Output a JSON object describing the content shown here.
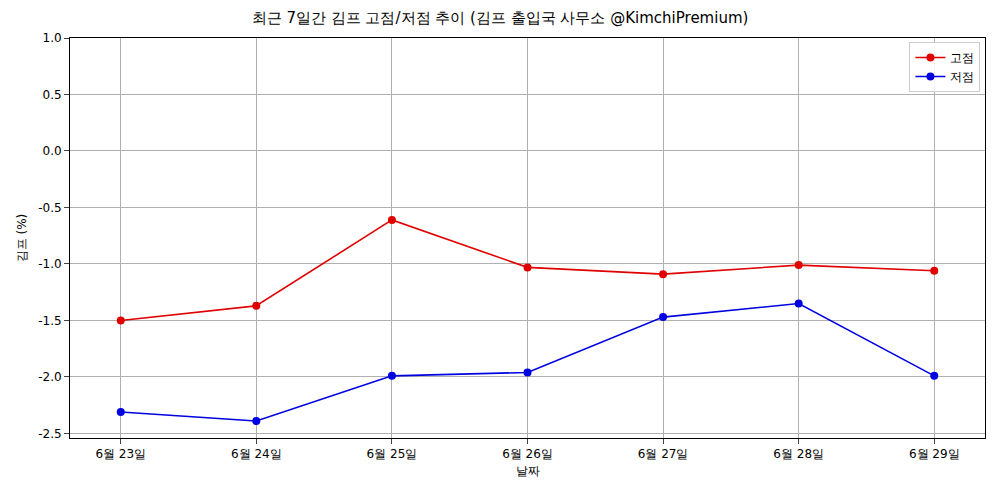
{
  "chart_data": {
    "type": "line",
    "title": "최근 7일간 김프 고점/저점 추이 (김프 출입국 사무소 @KimchiPremium)",
    "x_label": "날짜",
    "y_label": "김프 (%)",
    "categories": [
      "6월 23일",
      "6월 24일",
      "6월 25일",
      "6월 26일",
      "6월 27일",
      "6월 28일",
      "6월 29일"
    ],
    "series": [
      {
        "name": "고점",
        "color": "#e00000",
        "marker": "circle",
        "line_style": "solid",
        "values": [
          -1.5,
          -1.37,
          -0.61,
          -1.03,
          -1.09,
          -1.01,
          -1.06
        ]
      },
      {
        "name": "저점",
        "color": "#0000e0",
        "marker": "circle",
        "line_style": "solid",
        "values": [
          -2.31,
          -2.39,
          -1.99,
          -1.96,
          -1.47,
          -1.35,
          -1.99
        ]
      }
    ],
    "ylim": [
      -2.54,
      1.0
    ],
    "yticks": [
      -2.5,
      {
        "value": -2,
        "label": "-2.0"
      },
      -1.5,
      {
        "value": -1,
        "label": "-1.0"
      },
      -0.5,
      {
        "value": 0,
        "label": "0.0"
      },
      0.5,
      {
        "value": 1,
        "label": "1.0"
      }
    ],
    "grid": true,
    "legend": "top right"
  }
}
